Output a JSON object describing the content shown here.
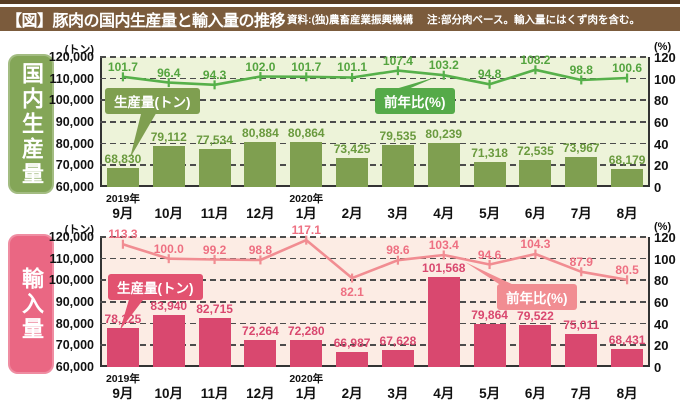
{
  "header": {
    "title": "【図】豚肉の国内生産量と輸入量の推移",
    "source": "資料:(独)農畜産業振興機構",
    "note": "注:部分肉ベース。輸入量にはくず肉を含む。",
    "bg_color": "#7b5b3c",
    "border_color": "#573d24"
  },
  "axis": {
    "left_unit": "(トン)",
    "right_unit": "(%)",
    "left_ticks": [
      "120,000",
      "110,000",
      "100,000",
      "90,000",
      "80,000",
      "70,000",
      "60,000"
    ],
    "right_ticks": [
      "120",
      "100",
      "80",
      "60",
      "40",
      "20",
      "0"
    ]
  },
  "chart_data": [
    {
      "type": "bar+line",
      "sidebar_label": "国内生産量",
      "categories": [
        "9月",
        "10月",
        "11月",
        "12月",
        "1月",
        "2月",
        "3月",
        "4月",
        "5月",
        "6月",
        "7月",
        "8月"
      ],
      "year_labels": [
        {
          "index": 0,
          "label": "2019年"
        },
        {
          "index": 4,
          "label": "2020年"
        }
      ],
      "bar_series": {
        "name": "生産量(トン)",
        "values": [
          68830,
          79112,
          77534,
          80884,
          80864,
          73425,
          79535,
          80239,
          71318,
          72535,
          73967,
          68179
        ]
      },
      "line_series": {
        "name": "前年比(%)",
        "values": [
          101.7,
          96.4,
          94.3,
          102.0,
          101.7,
          101.1,
          107.4,
          103.2,
          94.8,
          108.2,
          98.8,
          100.6
        ]
      },
      "ylim_left": [
        60000,
        120000
      ],
      "ylim_right": [
        0,
        120
      ],
      "line_label_below": [],
      "colors": {
        "plot_bg": "#edf3d9",
        "bar": "#7f9f50",
        "bar_label": "#6a9a3e",
        "line": "#56b04a",
        "line_label": "#54a43f",
        "sidebar": "#84a658",
        "legend_bar_bg": "#7f9f50",
        "legend_line_bg": "#55aa49"
      }
    },
    {
      "type": "bar+line",
      "sidebar_label": "輸入量",
      "categories": [
        "9月",
        "10月",
        "11月",
        "12月",
        "1月",
        "2月",
        "3月",
        "4月",
        "5月",
        "6月",
        "7月",
        "8月"
      ],
      "year_labels": [
        {
          "index": 0,
          "label": "2019年"
        },
        {
          "index": 4,
          "label": "2020年"
        }
      ],
      "bar_series": {
        "name": "生産量(トン)",
        "values": [
          78125,
          83940,
          82715,
          72264,
          72280,
          66987,
          67628,
          101568,
          79864,
          79522,
          75011,
          68431
        ]
      },
      "line_series": {
        "name": "前年比(%)",
        "values": [
          113.3,
          100.0,
          99.2,
          98.8,
          117.1,
          82.1,
          98.6,
          103.4,
          94.6,
          104.3,
          87.9,
          80.5
        ]
      },
      "ylim_left": [
        60000,
        120000
      ],
      "ylim_right": [
        0,
        120
      ],
      "line_label_below": [
        5
      ],
      "colors": {
        "plot_bg": "#fcece4",
        "bar": "#d9486f",
        "bar_label": "#d9486f",
        "line": "#f18d92",
        "line_label": "#ee7082",
        "sidebar": "#ea6783",
        "legend_bar_bg": "#e25270",
        "legend_line_bg": "#f18d92"
      }
    }
  ]
}
